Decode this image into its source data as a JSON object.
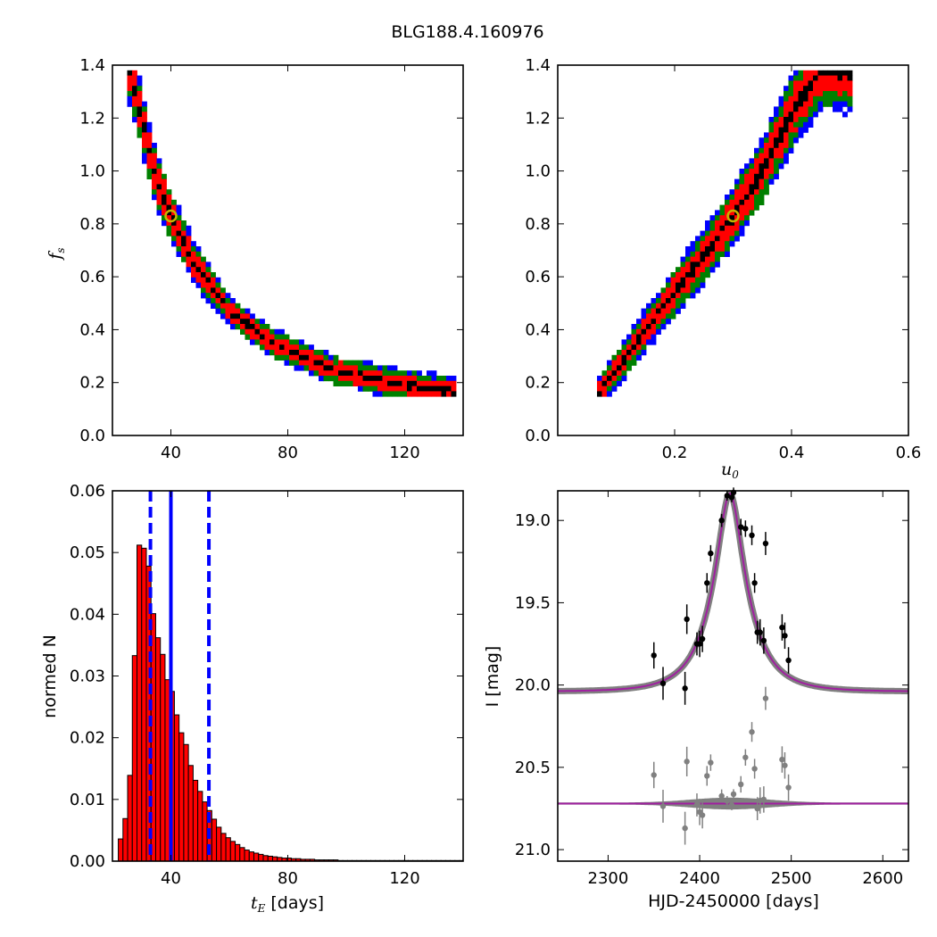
{
  "figure_title": "BLG188.4.160976",
  "chart_data": [
    {
      "id": "tE_fs",
      "type": "heatmap",
      "xlabel": "",
      "ylabel": "f_s",
      "xlim": [
        20,
        140
      ],
      "ylim": [
        0.0,
        1.4
      ],
      "xticks": [
        40,
        80,
        120
      ],
      "yticks": [
        0.0,
        0.2,
        0.4,
        0.6,
        0.8,
        1.0,
        1.2,
        1.4
      ],
      "confidence_colors": [
        "#000000",
        "#ff0000",
        "#008000",
        "#0000ff"
      ],
      "ridge": [
        [
          26,
          1.38
        ],
        [
          30,
          1.2
        ],
        [
          34,
          1.0
        ],
        [
          40,
          0.83
        ],
        [
          48,
          0.65
        ],
        [
          60,
          0.47
        ],
        [
          75,
          0.35
        ],
        [
          95,
          0.25
        ],
        [
          120,
          0.19
        ],
        [
          140,
          0.16
        ]
      ],
      "best_fit": {
        "x": 40,
        "y": 0.83,
        "color": "#c8b400"
      }
    },
    {
      "id": "u0_fs",
      "type": "heatmap",
      "xlabel": "u_0",
      "ylabel": "",
      "xlim": [
        0.0,
        0.6
      ],
      "ylim": [
        0.0,
        1.4
      ],
      "xticks": [
        0.2,
        0.4,
        0.6
      ],
      "yticks": [
        0.0,
        0.2,
        0.4,
        0.6,
        0.8,
        1.0,
        1.2,
        1.4
      ],
      "confidence_colors": [
        "#000000",
        "#ff0000",
        "#008000",
        "#0000ff"
      ],
      "ridge": [
        [
          0.07,
          0.16
        ],
        [
          0.15,
          0.4
        ],
        [
          0.25,
          0.68
        ],
        [
          0.3,
          0.83
        ],
        [
          0.35,
          1.0
        ],
        [
          0.4,
          1.22
        ],
        [
          0.45,
          1.38
        ]
      ],
      "best_fit": {
        "x": 0.3,
        "y": 0.83,
        "color": "#c8b400"
      }
    },
    {
      "id": "tE_hist",
      "type": "bar",
      "xlabel": "t_E [days]",
      "ylabel": "normed N",
      "xlim": [
        20,
        140
      ],
      "ylim": [
        0.0,
        0.06
      ],
      "xticks": [
        40,
        80,
        120
      ],
      "yticks": [
        0.0,
        0.01,
        0.02,
        0.03,
        0.04,
        0.05,
        0.06
      ],
      "bin_start": 22,
      "bin_width": 1.6,
      "bar_color": "#ff0000",
      "values": [
        0.0036,
        0.0069,
        0.0139,
        0.0333,
        0.0512,
        0.0507,
        0.0478,
        0.0401,
        0.0362,
        0.0335,
        0.0294,
        0.0275,
        0.0237,
        0.0208,
        0.0189,
        0.0155,
        0.0131,
        0.0113,
        0.0096,
        0.0082,
        0.0068,
        0.0055,
        0.0045,
        0.0038,
        0.0032,
        0.0027,
        0.0022,
        0.0018,
        0.0015,
        0.0013,
        0.0011,
        0.0009,
        0.0008,
        0.0007,
        0.0006,
        0.0005,
        0.0005,
        0.0004,
        0.0004,
        0.0003,
        0.0003,
        0.0003,
        0.0002,
        0.0002,
        0.0002,
        0.0002,
        0.0002,
        0.0001,
        0.0001,
        0.0001,
        0.0001,
        0.0001,
        0.0001,
        0.0001,
        0.0001,
        0.0001,
        0.0001,
        0.0001,
        0.0001,
        0.0001,
        0.0001,
        0.0001,
        0.0001,
        0.0001,
        0.0001,
        0.0001,
        0.0001,
        0.0001,
        0.0001,
        0.0001,
        0.0001,
        0.0001,
        0.0001,
        0.0001
      ],
      "median": 40,
      "lower": 33,
      "upper": 53,
      "line_color": "#0000ff"
    },
    {
      "id": "lightcurve",
      "type": "scatter",
      "xlabel": "HJD-2450000 [days]",
      "ylabel": "I [mag]",
      "xlim": [
        2245,
        2628
      ],
      "ylim": [
        21.07,
        18.82
      ],
      "inverted_y": true,
      "xticks": [
        2300,
        2400,
        2500,
        2600
      ],
      "yticks": [
        19.0,
        19.5,
        20.0,
        20.5,
        21.0
      ],
      "model": {
        "t0": 2433,
        "tE": 40,
        "u0": 0.3,
        "fs": 0.83,
        "baseline": 20.04,
        "color": "#a020a0",
        "band_color": "#808080"
      },
      "data_points": [
        {
          "t": 2350,
          "mag": 19.82,
          "err": 0.08
        },
        {
          "t": 2360,
          "mag": 19.99,
          "err": 0.1
        },
        {
          "t": 2384,
          "mag": 20.02,
          "err": 0.1
        },
        {
          "t": 2386,
          "mag": 19.6,
          "err": 0.09
        },
        {
          "t": 2397,
          "mag": 19.75,
          "err": 0.07
        },
        {
          "t": 2400,
          "mag": 19.75,
          "err": 0.08
        },
        {
          "t": 2403,
          "mag": 19.72,
          "err": 0.08
        },
        {
          "t": 2408,
          "mag": 19.38,
          "err": 0.06
        },
        {
          "t": 2412,
          "mag": 19.2,
          "err": 0.05
        },
        {
          "t": 2424,
          "mag": 19.0,
          "err": 0.04
        },
        {
          "t": 2430,
          "mag": 18.85,
          "err": 0.03
        },
        {
          "t": 2435,
          "mag": 18.86,
          "err": 0.03
        },
        {
          "t": 2437,
          "mag": 18.83,
          "err": 0.03
        },
        {
          "t": 2445,
          "mag": 19.04,
          "err": 0.05
        },
        {
          "t": 2450,
          "mag": 19.05,
          "err": 0.05
        },
        {
          "t": 2457,
          "mag": 19.09,
          "err": 0.06
        },
        {
          "t": 2460,
          "mag": 19.38,
          "err": 0.06
        },
        {
          "t": 2463,
          "mag": 19.68,
          "err": 0.07
        },
        {
          "t": 2466,
          "mag": 19.68,
          "err": 0.08
        },
        {
          "t": 2470,
          "mag": 19.73,
          "err": 0.08
        },
        {
          "t": 2472,
          "mag": 19.14,
          "err": 0.07
        },
        {
          "t": 2490,
          "mag": 19.65,
          "err": 0.08
        },
        {
          "t": 2493,
          "mag": 19.7,
          "err": 0.08
        },
        {
          "t": 2497,
          "mag": 19.85,
          "err": 0.08
        }
      ],
      "residual_offset": 20.72,
      "residual_color": "#808080"
    }
  ]
}
